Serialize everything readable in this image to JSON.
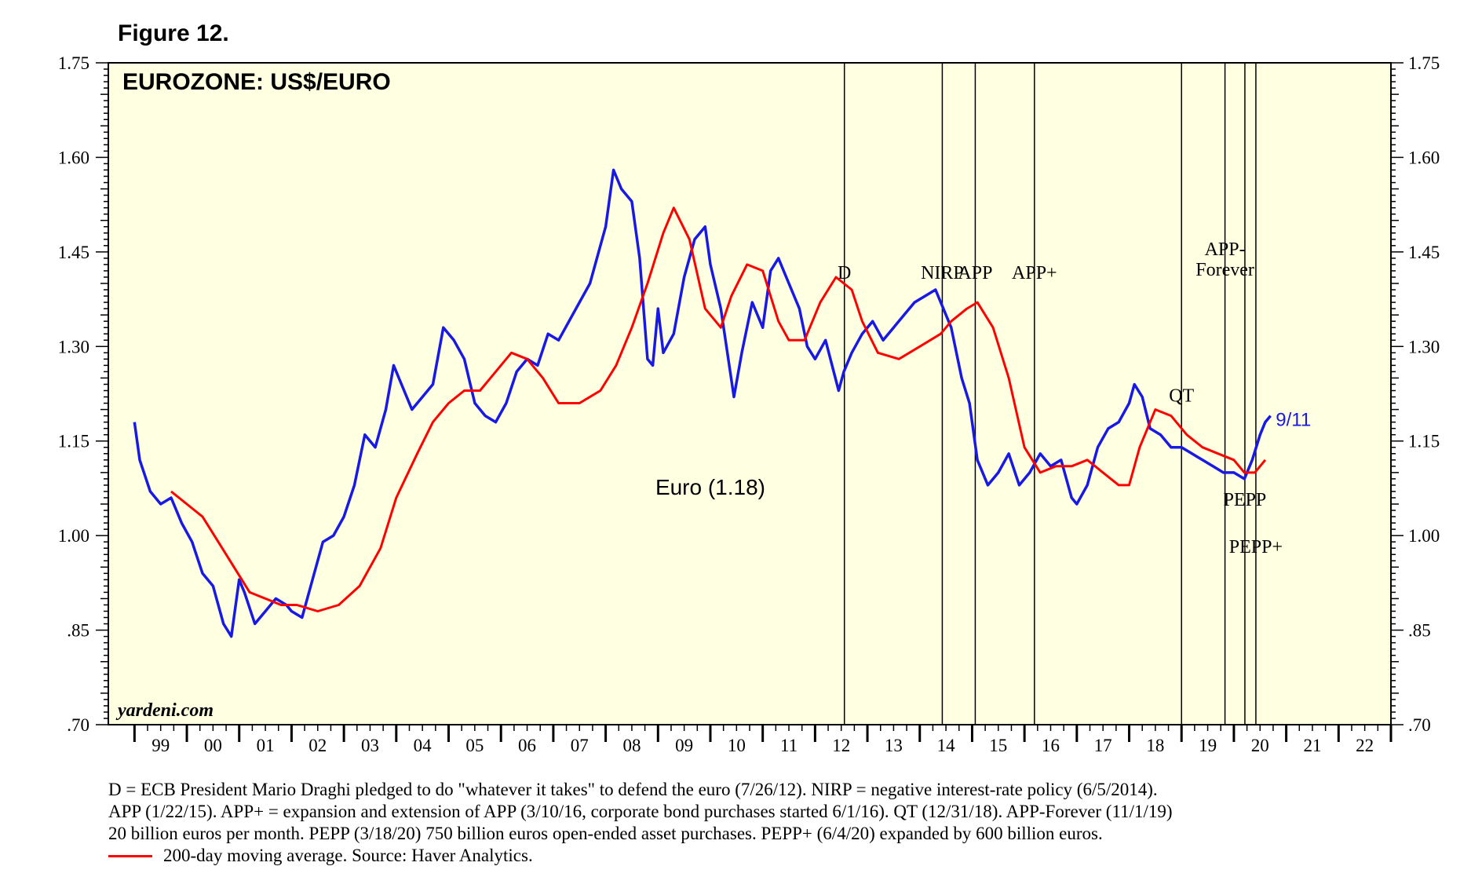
{
  "figure_label": "Figure 12.",
  "colors": {
    "price": "#1919e6",
    "moving_average": "#ff0000",
    "plot_bg": "#ffffe1",
    "frame": "#000000"
  },
  "chart_data": {
    "type": "line",
    "title": "EUROZONE: US$/EURO",
    "watermark": "yardeni.com",
    "ylim": [
      0.7,
      1.75
    ],
    "xlim": [
      1998.5,
      2023.0
    ],
    "y_ticks": [
      0.7,
      0.85,
      1.0,
      1.15,
      1.3,
      1.45,
      1.6,
      1.75
    ],
    "y_tick_labels": [
      ".70",
      ".85",
      "1.00",
      "1.15",
      "1.30",
      "1.45",
      "1.60",
      "1.75"
    ],
    "x_tick_labels": [
      "99",
      "00",
      "01",
      "02",
      "03",
      "04",
      "05",
      "06",
      "07",
      "08",
      "09",
      "10",
      "11",
      "12",
      "13",
      "14",
      "15",
      "16",
      "17",
      "18",
      "19",
      "20",
      "21",
      "22"
    ],
    "grid": false,
    "series": [
      {
        "name": "Euro (1.18)",
        "x": [
          1999.0,
          1999.1,
          1999.3,
          1999.5,
          1999.7,
          1999.9,
          2000.1,
          2000.3,
          2000.5,
          2000.7,
          2000.85,
          2001.0,
          2001.1,
          2001.3,
          2001.5,
          2001.7,
          2001.9,
          2002.0,
          2002.2,
          2002.4,
          2002.6,
          2002.8,
          2003.0,
          2003.2,
          2003.4,
          2003.6,
          2003.8,
          2003.95,
          2004.1,
          2004.3,
          2004.5,
          2004.7,
          2004.9,
          2005.1,
          2005.3,
          2005.5,
          2005.7,
          2005.9,
          2006.1,
          2006.3,
          2006.5,
          2006.7,
          2006.9,
          2007.1,
          2007.3,
          2007.5,
          2007.7,
          2007.9,
          2008.0,
          2008.15,
          2008.3,
          2008.5,
          2008.65,
          2008.8,
          2008.9,
          2009.0,
          2009.1,
          2009.3,
          2009.5,
          2009.7,
          2009.9,
          2010.0,
          2010.2,
          2010.45,
          2010.6,
          2010.8,
          2011.0,
          2011.15,
          2011.3,
          2011.5,
          2011.7,
          2011.85,
          2012.0,
          2012.2,
          2012.45,
          2012.55,
          2012.7,
          2012.9,
          2013.1,
          2013.3,
          2013.5,
          2013.7,
          2013.9,
          2014.1,
          2014.3,
          2014.45,
          2014.6,
          2014.8,
          2014.95,
          2015.1,
          2015.3,
          2015.5,
          2015.7,
          2015.9,
          2016.1,
          2016.3,
          2016.5,
          2016.7,
          2016.9,
          2017.0,
          2017.2,
          2017.4,
          2017.6,
          2017.8,
          2018.0,
          2018.1,
          2018.25,
          2018.4,
          2018.6,
          2018.8,
          2019.0,
          2019.2,
          2019.4,
          2019.6,
          2019.8,
          2020.0,
          2020.2,
          2020.35,
          2020.5,
          2020.6,
          2020.7
        ],
        "values": [
          1.18,
          1.12,
          1.07,
          1.05,
          1.06,
          1.02,
          0.99,
          0.94,
          0.92,
          0.86,
          0.84,
          0.93,
          0.91,
          0.86,
          0.88,
          0.9,
          0.89,
          0.88,
          0.87,
          0.93,
          0.99,
          1.0,
          1.03,
          1.08,
          1.16,
          1.14,
          1.2,
          1.27,
          1.24,
          1.2,
          1.22,
          1.24,
          1.33,
          1.31,
          1.28,
          1.21,
          1.19,
          1.18,
          1.21,
          1.26,
          1.28,
          1.27,
          1.32,
          1.31,
          1.34,
          1.37,
          1.4,
          1.46,
          1.49,
          1.58,
          1.55,
          1.53,
          1.44,
          1.28,
          1.27,
          1.36,
          1.29,
          1.32,
          1.41,
          1.47,
          1.49,
          1.43,
          1.36,
          1.22,
          1.29,
          1.37,
          1.33,
          1.42,
          1.44,
          1.4,
          1.36,
          1.3,
          1.28,
          1.31,
          1.23,
          1.26,
          1.29,
          1.32,
          1.34,
          1.31,
          1.33,
          1.35,
          1.37,
          1.38,
          1.39,
          1.36,
          1.33,
          1.25,
          1.21,
          1.12,
          1.08,
          1.1,
          1.13,
          1.08,
          1.1,
          1.13,
          1.11,
          1.12,
          1.06,
          1.05,
          1.08,
          1.14,
          1.17,
          1.18,
          1.21,
          1.24,
          1.22,
          1.17,
          1.16,
          1.14,
          1.14,
          1.13,
          1.12,
          1.11,
          1.1,
          1.1,
          1.09,
          1.12,
          1.16,
          1.18,
          1.19
        ]
      },
      {
        "name": "200-day moving average",
        "x": [
          1999.7,
          2000.0,
          2000.3,
          2000.6,
          2000.9,
          2001.2,
          2001.5,
          2001.8,
          2002.1,
          2002.5,
          2002.9,
          2003.3,
          2003.7,
          2004.0,
          2004.4,
          2004.7,
          2005.0,
          2005.3,
          2005.6,
          2005.9,
          2006.2,
          2006.5,
          2006.8,
          2007.1,
          2007.5,
          2007.9,
          2008.2,
          2008.35,
          2008.5,
          2008.8,
          2009.1,
          2009.3,
          2009.6,
          2009.9,
          2010.2,
          2010.4,
          2010.7,
          2011.0,
          2011.3,
          2011.5,
          2011.8,
          2012.1,
          2012.4,
          2012.7,
          2012.9,
          2013.2,
          2013.6,
          2014.0,
          2014.4,
          2014.6,
          2014.9,
          2015.1,
          2015.4,
          2015.7,
          2016.0,
          2016.3,
          2016.6,
          2016.9,
          2017.2,
          2017.5,
          2017.8,
          2018.0,
          2018.2,
          2018.5,
          2018.8,
          2019.1,
          2019.4,
          2019.7,
          2020.0,
          2020.2,
          2020.4,
          2020.6
        ],
        "values": [
          1.07,
          1.05,
          1.03,
          0.99,
          0.95,
          0.91,
          0.9,
          0.89,
          0.89,
          0.88,
          0.89,
          0.92,
          0.98,
          1.06,
          1.13,
          1.18,
          1.21,
          1.23,
          1.23,
          1.26,
          1.29,
          1.28,
          1.25,
          1.21,
          1.21,
          1.23,
          1.27,
          1.3,
          1.33,
          1.4,
          1.48,
          1.52,
          1.47,
          1.36,
          1.33,
          1.38,
          1.43,
          1.42,
          1.34,
          1.31,
          1.31,
          1.37,
          1.41,
          1.39,
          1.34,
          1.29,
          1.28,
          1.3,
          1.32,
          1.34,
          1.36,
          1.37,
          1.33,
          1.25,
          1.14,
          1.1,
          1.11,
          1.11,
          1.12,
          1.1,
          1.08,
          1.08,
          1.14,
          1.2,
          1.19,
          1.16,
          1.14,
          1.13,
          1.12,
          1.1,
          1.1,
          1.12
        ]
      }
    ],
    "events": [
      {
        "label": "D",
        "x": 2012.56
      },
      {
        "label": "NIRP",
        "x": 2014.43
      },
      {
        "label": "APP",
        "x": 2015.06
      },
      {
        "label": "APP+",
        "x": 2016.19
      },
      {
        "label": "QT",
        "x": 2019.0
      },
      {
        "label": "APP-\nForever",
        "x": 2019.83
      },
      {
        "label": "PEPP",
        "x": 2020.21
      },
      {
        "label": "PEPP+",
        "x": 2020.42
      }
    ],
    "annotations": [
      {
        "text": "Euro (1.18)",
        "x": 2010.0,
        "y": 1.075
      },
      {
        "text": "9/11",
        "x": 2020.8,
        "y": 1.184
      }
    ]
  },
  "footnote": {
    "lines": [
      "D = ECB President Mario Draghi pledged to do \"whatever it takes\" to defend the euro (7/26/12). NIRP = negative interest-rate policy (6/5/2014).",
      "APP (1/22/15). APP+ = expansion and extension of APP (3/10/16, corporate bond purchases started 6/1/16). QT (12/31/18). APP-Forever (11/1/19)",
      "20 billion euros per month. PEPP (3/18/20) 750 billion euros open-ended asset purchases. PEPP+ (6/4/20) expanded by 600 billion euros."
    ],
    "legend_text": "200-day moving average. Source: Haver Analytics."
  }
}
